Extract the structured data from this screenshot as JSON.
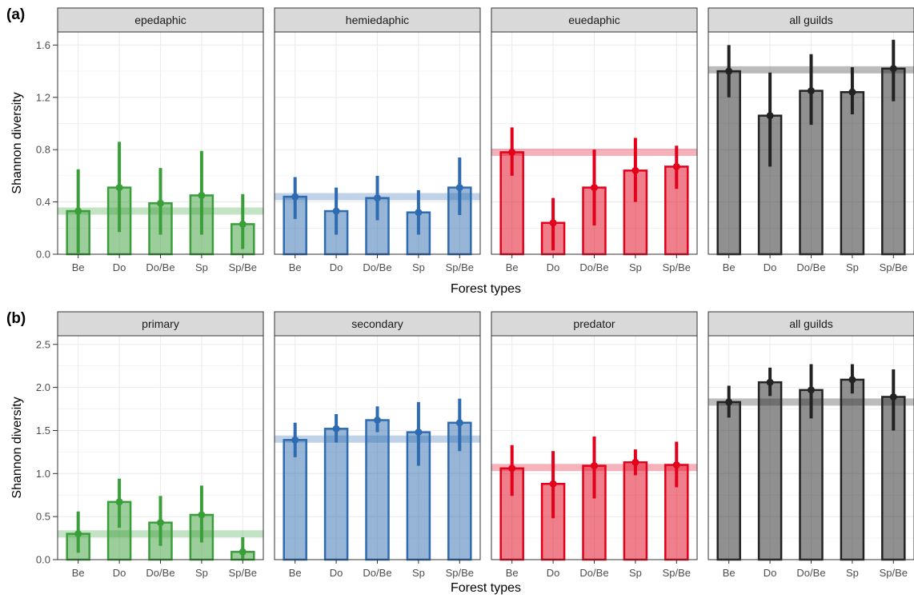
{
  "ylabel": "Shannon diversity",
  "xlabel": "Forest types",
  "categories": [
    "Be",
    "Do",
    "Do/Be",
    "Sp",
    "Sp/Be"
  ],
  "colors": {
    "green": "#3a9e3a",
    "blue": "#2e6bb0",
    "red": "#e2001a",
    "dark": "#222222",
    "strip_bg": "#d9d9d9",
    "grid": "#ebebeb"
  },
  "chart_data": [
    {
      "type": "bar",
      "panel_label": "(a)",
      "ylim": [
        0,
        1.7
      ],
      "yticks": [
        "0.0",
        "0.4",
        "0.8",
        "1.2",
        "1.6"
      ],
      "ytick_values": [
        0,
        0.4,
        0.8,
        1.2,
        1.6
      ],
      "facets": [
        {
          "strip": "epedaphic",
          "color": "green",
          "mean_line": 0.33,
          "values": [
            0.33,
            0.51,
            0.39,
            0.45,
            0.23
          ],
          "lower": [
            0.01,
            0.17,
            0.15,
            0.15,
            0.04
          ],
          "upper": [
            0.65,
            0.86,
            0.66,
            0.79,
            0.46
          ]
        },
        {
          "strip": "hemiedaphic",
          "color": "blue",
          "mean_line": 0.44,
          "values": [
            0.44,
            0.33,
            0.43,
            0.32,
            0.51
          ],
          "lower": [
            0.27,
            0.15,
            0.26,
            0.15,
            0.3
          ],
          "upper": [
            0.59,
            0.51,
            0.6,
            0.49,
            0.74
          ]
        },
        {
          "strip": "euedaphic",
          "color": "red",
          "mean_line": 0.78,
          "values": [
            0.78,
            0.24,
            0.51,
            0.64,
            0.67
          ],
          "lower": [
            0.6,
            0.03,
            0.22,
            0.4,
            0.5
          ],
          "upper": [
            0.97,
            0.43,
            0.8,
            0.89,
            0.83
          ]
        },
        {
          "strip": "all guilds",
          "color": "dark",
          "mean_line": 1.41,
          "values": [
            1.4,
            1.06,
            1.25,
            1.24,
            1.42
          ],
          "lower": [
            1.2,
            0.67,
            0.99,
            1.07,
            1.17
          ],
          "upper": [
            1.6,
            1.39,
            1.53,
            1.43,
            1.64
          ]
        }
      ]
    },
    {
      "type": "bar",
      "panel_label": "(b)",
      "ylim": [
        0,
        2.6
      ],
      "yticks": [
        "0.0",
        "0.5",
        "1.0",
        "1.5",
        "2.0",
        "2.5"
      ],
      "ytick_values": [
        0,
        0.5,
        1.0,
        1.5,
        2.0,
        2.5
      ],
      "facets": [
        {
          "strip": "primary",
          "color": "green",
          "mean_line": 0.3,
          "values": [
            0.3,
            0.67,
            0.43,
            0.52,
            0.09
          ],
          "lower": [
            0.08,
            0.37,
            0.16,
            0.2,
            0.0
          ],
          "upper": [
            0.56,
            0.94,
            0.74,
            0.86,
            0.26
          ]
        },
        {
          "strip": "secondary",
          "color": "blue",
          "mean_line": 1.4,
          "values": [
            1.39,
            1.52,
            1.62,
            1.48,
            1.59
          ],
          "lower": [
            1.19,
            1.36,
            1.48,
            1.09,
            1.26
          ],
          "upper": [
            1.59,
            1.69,
            1.78,
            1.83,
            1.87
          ]
        },
        {
          "strip": "predator",
          "color": "red",
          "mean_line": 1.07,
          "values": [
            1.06,
            0.88,
            1.09,
            1.13,
            1.1
          ],
          "lower": [
            0.74,
            0.48,
            0.71,
            0.98,
            0.84
          ],
          "upper": [
            1.33,
            1.26,
            1.43,
            1.28,
            1.37
          ]
        },
        {
          "strip": "all guilds",
          "color": "dark",
          "mean_line": 1.83,
          "values": [
            1.83,
            2.06,
            1.97,
            2.09,
            1.89
          ],
          "lower": [
            1.65,
            1.9,
            1.64,
            1.93,
            1.5
          ],
          "upper": [
            2.02,
            2.23,
            2.27,
            2.27,
            2.21
          ]
        }
      ]
    }
  ]
}
